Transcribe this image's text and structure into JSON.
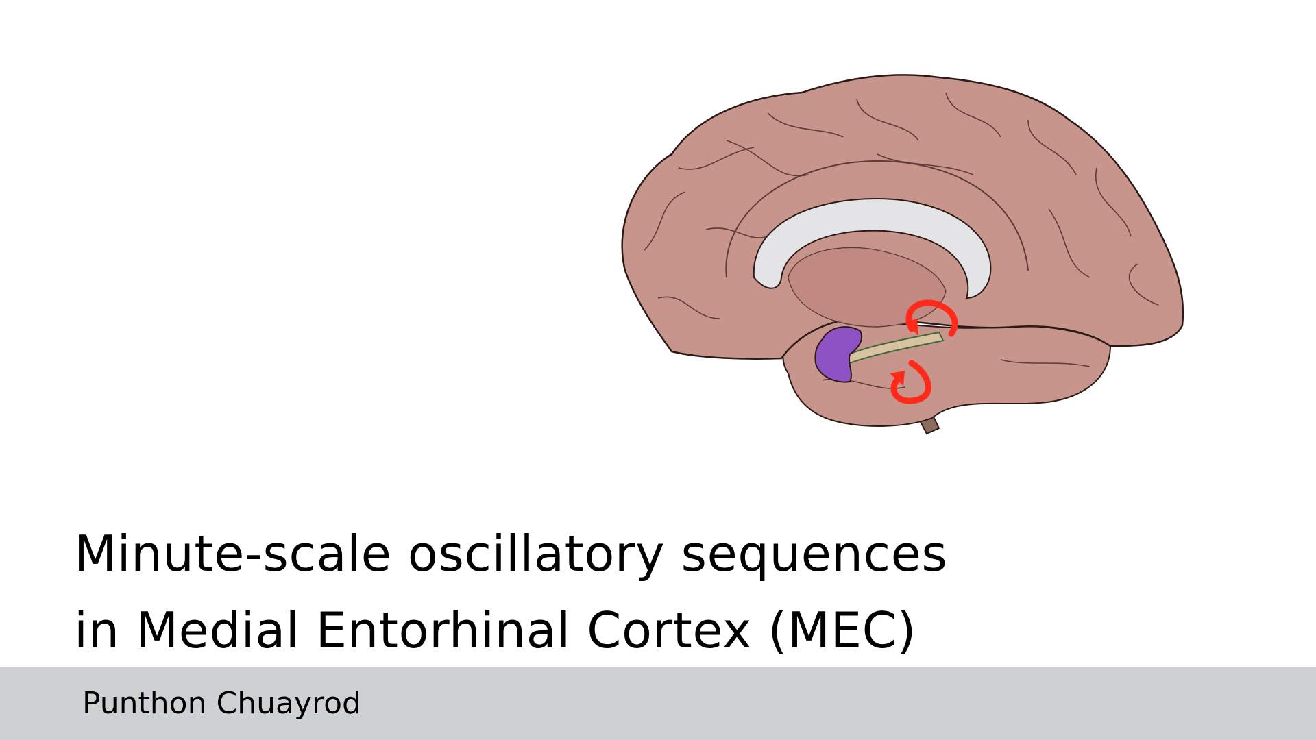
{
  "slide": {
    "title_line_1": "Minute-scale oscillatory sequences",
    "title_line_2": "in Medial Entorhinal Cortex (MEC)",
    "author": "Punthon Chuayrod"
  },
  "colors": {
    "background": "#ffffff",
    "footer_bar": "#cfd0d2",
    "text": "#000000",
    "brain_tissue": "#c8958d",
    "callosum": "#e4e4e6",
    "arrow": "#ff2a1a",
    "mec_region": "#8e52c4",
    "brainstem": "#8b6a5f"
  },
  "figure": {
    "icon": "brain-medial-section-icon"
  }
}
